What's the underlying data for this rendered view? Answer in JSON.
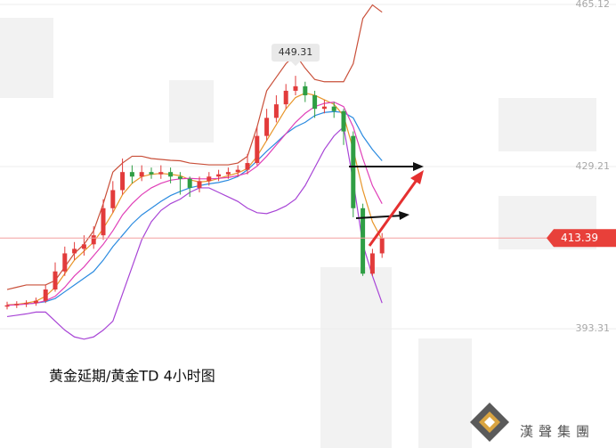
{
  "chart_data": {
    "type": "candlestick",
    "title": "黄金延期/黄金TD 4小时图",
    "watermark": "漢聲集團",
    "ylim": [
      366.9,
      466.1
    ],
    "yticks": [
      465.12,
      429.21,
      393.31
    ],
    "up_color": "#e23b3b",
    "down_color": "#2f9e44",
    "candles": [
      {
        "open": 398.2,
        "high": 399.3,
        "low": 397.6,
        "close": 398.5
      },
      {
        "open": 398.5,
        "high": 399.4,
        "low": 397.9,
        "close": 398.8
      },
      {
        "open": 398.8,
        "high": 399.6,
        "low": 398.1,
        "close": 399
      },
      {
        "open": 399,
        "high": 400.2,
        "low": 398.4,
        "close": 399.5
      },
      {
        "open": 399.5,
        "high": 403,
        "low": 399,
        "close": 402
      },
      {
        "open": 402,
        "high": 408,
        "low": 401.5,
        "close": 406
      },
      {
        "open": 406,
        "high": 411.5,
        "low": 405,
        "close": 410
      },
      {
        "open": 410,
        "high": 412.5,
        "low": 408.5,
        "close": 411
      },
      {
        "open": 411,
        "high": 414,
        "low": 409.5,
        "close": 412
      },
      {
        "open": 412,
        "high": 416,
        "low": 411,
        "close": 414
      },
      {
        "open": 414,
        "high": 422,
        "low": 413,
        "close": 420
      },
      {
        "open": 420,
        "high": 426,
        "low": 419,
        "close": 424
      },
      {
        "open": 424,
        "high": 431,
        "low": 423,
        "close": 428
      },
      {
        "open": 428,
        "high": 429.5,
        "low": 425.5,
        "close": 427
      },
      {
        "open": 427,
        "high": 429.5,
        "low": 426,
        "close": 428
      },
      {
        "open": 428,
        "high": 429,
        "low": 426.5,
        "close": 427.5
      },
      {
        "open": 427.5,
        "high": 429.5,
        "low": 426.5,
        "close": 428
      },
      {
        "open": 428,
        "high": 429,
        "low": 425.5,
        "close": 427
      },
      {
        "open": 427,
        "high": 428,
        "low": 423,
        "close": 426.5
      },
      {
        "open": 426.5,
        "high": 427,
        "low": 422.5,
        "close": 424.5
      },
      {
        "open": 424.5,
        "high": 427,
        "low": 423.5,
        "close": 426
      },
      {
        "open": 426,
        "high": 428,
        "low": 425,
        "close": 427
      },
      {
        "open": 427,
        "high": 428.5,
        "low": 426,
        "close": 427.5
      },
      {
        "open": 427.5,
        "high": 429,
        "low": 426.5,
        "close": 428
      },
      {
        "open": 428,
        "high": 429.5,
        "low": 427,
        "close": 428.5
      },
      {
        "open": 428.5,
        "high": 432,
        "low": 427.5,
        "close": 430
      },
      {
        "open": 430,
        "high": 438,
        "low": 429.5,
        "close": 436
      },
      {
        "open": 436,
        "high": 442,
        "low": 435,
        "close": 440
      },
      {
        "open": 440,
        "high": 445,
        "low": 439,
        "close": 443
      },
      {
        "open": 443,
        "high": 447.5,
        "low": 442,
        "close": 446
      },
      {
        "open": 446,
        "high": 449.31,
        "low": 445,
        "close": 447
      },
      {
        "open": 447,
        "high": 448,
        "low": 443.5,
        "close": 445
      },
      {
        "open": 445,
        "high": 446,
        "low": 440,
        "close": 442
      },
      {
        "open": 442,
        "high": 444,
        "low": 441,
        "close": 442.5
      },
      {
        "open": 442.5,
        "high": 443.5,
        "low": 440,
        "close": 441.5
      },
      {
        "open": 441.5,
        "high": 442,
        "low": 434,
        "close": 437
      },
      {
        "open": 436,
        "high": 437,
        "low": 418,
        "close": 420
      },
      {
        "open": 420,
        "high": 421,
        "low": 405,
        "close": 405.5
      },
      {
        "open": 405.5,
        "high": 411,
        "low": 405,
        "close": 410
      },
      {
        "open": 410,
        "high": 414.5,
        "low": 409,
        "close": 413.39
      }
    ],
    "lines": [
      {
        "color": "#c9503a",
        "values": [
          402,
          402.5,
          403,
          403,
          403,
          404,
          407,
          410,
          412,
          415,
          421,
          428,
          430,
          431.5,
          431.5,
          431,
          430.8,
          430.6,
          430.5,
          430,
          429.8,
          429.6,
          429.6,
          429.6,
          430,
          431.5,
          438,
          446,
          449,
          452,
          454,
          451,
          448.5,
          448,
          448,
          448,
          452,
          462,
          465,
          463.4
        ]
      },
      {
        "color": "#a845d6",
        "values": [
          396,
          396.3,
          396.6,
          397,
          397,
          395,
          393,
          391.5,
          391,
          391.5,
          393,
          395,
          401,
          407,
          413,
          417,
          419.5,
          421,
          422,
          423.5,
          424.5,
          424.5,
          423.5,
          422.5,
          421.5,
          420,
          419,
          418.8,
          419.5,
          420.5,
          422,
          425,
          429,
          433,
          436,
          438,
          426,
          412,
          405,
          399
        ]
      },
      {
        "color": "#2b8be0",
        "values": [
          398.5,
          398.7,
          398.8,
          399,
          399.3,
          400,
          401.5,
          403,
          404.5,
          406,
          408.5,
          411.5,
          414,
          416.5,
          418.5,
          420,
          421.5,
          422.8,
          423.7,
          424.5,
          425,
          425.4,
          425.7,
          426.2,
          427,
          428.5,
          430.5,
          432.6,
          434.5,
          436.5,
          438,
          439,
          440.5,
          441.2,
          441.4,
          441.2,
          440,
          436,
          433,
          430.5
        ]
      },
      {
        "color": "#e8962a",
        "values": [
          398.6,
          398.7,
          399,
          399.4,
          400.5,
          402.5,
          405.5,
          408.5,
          410.5,
          412.5,
          415.5,
          419,
          423,
          425.5,
          427,
          427.5,
          427.7,
          427.5,
          427.2,
          426.3,
          425.8,
          426,
          426.6,
          427.2,
          427.8,
          428.8,
          431.5,
          435,
          438.5,
          442,
          444.5,
          445.5,
          445,
          444,
          443,
          440.5,
          433,
          424,
          417,
          413
        ]
      },
      {
        "color": "#e040b8",
        "values": [
          398.5,
          398.6,
          398.8,
          399,
          399.5,
          400.5,
          402.5,
          405,
          407,
          409.5,
          412,
          415,
          418.5,
          421,
          423,
          424.5,
          425.5,
          426.2,
          426.5,
          426.6,
          426.5,
          426.5,
          426.6,
          426.8,
          427.2,
          427.8,
          429.3,
          431.5,
          434,
          436.5,
          439,
          441,
          442.5,
          443.2,
          443.5,
          442.5,
          438,
          431,
          425,
          421
        ]
      }
    ]
  }
}
